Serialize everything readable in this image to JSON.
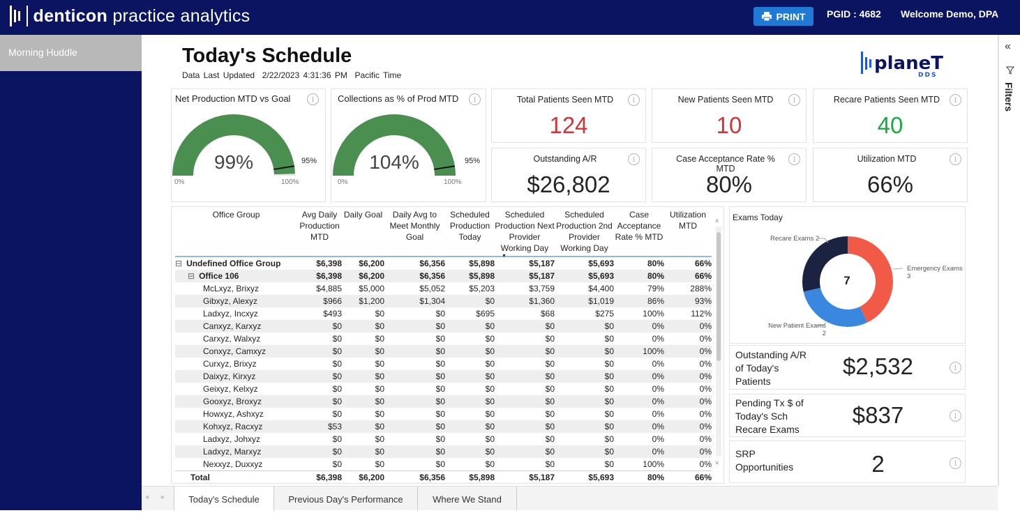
{
  "header": {
    "brand_bold": "denticon",
    "brand_light": "practice analytics",
    "print_label": "PRINT",
    "pgid": "PGID : 4682",
    "welcome": "Welcome Demo, DPA"
  },
  "sidebar": {
    "items": [
      {
        "label": "Morning Huddle"
      }
    ]
  },
  "page": {
    "title": "Today's Schedule",
    "updated_label": "Data Last Updated",
    "updated_value": "2/22/2023 4:31:36 PM",
    "timezone": "Pacific Time",
    "logo": "planet DDS"
  },
  "gauges": [
    {
      "title": "Net Production MTD vs Goal",
      "value": 99,
      "value_label": "99%",
      "target": 95,
      "target_label": "95%",
      "min_label": "0%",
      "max_label": "100%"
    },
    {
      "title": "Collections as % of Prod MTD",
      "value": 104,
      "value_label": "104%",
      "target": 95,
      "target_label": "95%",
      "min_label": "0%",
      "max_label": "100%"
    }
  ],
  "kpis": [
    {
      "title": "Total Patients Seen MTD",
      "value": "124",
      "color": "#d13438"
    },
    {
      "title": "New Patients Seen MTD",
      "value": "10",
      "color": "#d13438"
    },
    {
      "title": "Recare Patients Seen MTD",
      "value": "40",
      "color": "#1aab40"
    },
    {
      "title": "Outstanding A/R",
      "value": "$26,802",
      "color": "#252423"
    },
    {
      "title": "Case Acceptance Rate % MTD",
      "value": "80%",
      "color": "#252423"
    },
    {
      "title": "Utilization MTD",
      "value": "66%",
      "color": "#252423"
    }
  ],
  "table": {
    "headers": [
      "Office Group",
      "Avg Daily Production MTD",
      "Daily Goal",
      "Daily Avg to Meet Monthly Goal",
      "Scheduled Production Today",
      "Scheduled Production Next Provider Working Day",
      "Scheduled Production 2nd Provider Working Day",
      "Case Acceptance Rate % MTD",
      "Utilization MTD"
    ],
    "rows": [
      {
        "level": 0,
        "cells": [
          "Undefined Office Group",
          "$6,398",
          "$6,200",
          "$6,356",
          "$5,898",
          "$5,187",
          "$5,693",
          "80%",
          "66%"
        ]
      },
      {
        "level": 1,
        "cells": [
          "Office 106",
          "$6,398",
          "$6,200",
          "$6,356",
          "$5,898",
          "$5,187",
          "$5,693",
          "80%",
          "66%"
        ]
      },
      {
        "level": 2,
        "cells": [
          "McLxyz, Brixyz",
          "$4,885",
          "$5,000",
          "$5,052",
          "$5,203",
          "$3,759",
          "$4,400",
          "79%",
          "288%"
        ]
      },
      {
        "level": 2,
        "cells": [
          "Gibxyz, Alexyz",
          "$966",
          "$1,200",
          "$1,304",
          "$0",
          "$1,360",
          "$1,019",
          "86%",
          "93%"
        ]
      },
      {
        "level": 2,
        "cells": [
          "Ladxyz, Incxyz",
          "$493",
          "$0",
          "$0",
          "$695",
          "$68",
          "$275",
          "100%",
          "112%"
        ]
      },
      {
        "level": 2,
        "cells": [
          "Canxyz, Karxyz",
          "$0",
          "$0",
          "$0",
          "$0",
          "$0",
          "$0",
          "0%",
          "0%"
        ]
      },
      {
        "level": 2,
        "cells": [
          "Carxyz, Walxyz",
          "$0",
          "$0",
          "$0",
          "$0",
          "$0",
          "$0",
          "0%",
          "0%"
        ]
      },
      {
        "level": 2,
        "cells": [
          "Conxyz, Camxyz",
          "$0",
          "$0",
          "$0",
          "$0",
          "$0",
          "$0",
          "100%",
          "0%"
        ]
      },
      {
        "level": 2,
        "cells": [
          "Curxyz, Brixyz",
          "$0",
          "$0",
          "$0",
          "$0",
          "$0",
          "$0",
          "0%",
          "0%"
        ]
      },
      {
        "level": 2,
        "cells": [
          "Daixyz, Kirxyz",
          "$0",
          "$0",
          "$0",
          "$0",
          "$0",
          "$0",
          "0%",
          "0%"
        ]
      },
      {
        "level": 2,
        "cells": [
          "Geixyz, Kelxyz",
          "$0",
          "$0",
          "$0",
          "$0",
          "$0",
          "$0",
          "0%",
          "0%"
        ]
      },
      {
        "level": 2,
        "cells": [
          "Gooxyz, Broxyz",
          "$0",
          "$0",
          "$0",
          "$0",
          "$0",
          "$0",
          "0%",
          "0%"
        ]
      },
      {
        "level": 2,
        "cells": [
          "Howxyz, Ashxyz",
          "$0",
          "$0",
          "$0",
          "$0",
          "$0",
          "$0",
          "0%",
          "0%"
        ]
      },
      {
        "level": 2,
        "cells": [
          "Kohxyz, Racxyz",
          "$53",
          "$0",
          "$0",
          "$0",
          "$0",
          "$0",
          "0%",
          "0%"
        ]
      },
      {
        "level": 2,
        "cells": [
          "Ladxyz, Johxyz",
          "$0",
          "$0",
          "$0",
          "$0",
          "$0",
          "$0",
          "0%",
          "0%"
        ]
      },
      {
        "level": 2,
        "cells": [
          "Ladxyz, Marxyz",
          "$0",
          "$0",
          "$0",
          "$0",
          "$0",
          "$0",
          "0%",
          "0%"
        ]
      },
      {
        "level": 2,
        "cells": [
          "Nexxyz, Duxxyz",
          "$0",
          "$0",
          "$0",
          "$0",
          "$0",
          "$0",
          "100%",
          "0%"
        ]
      }
    ],
    "total": [
      "Total",
      "$6,398",
      "$6,200",
      "$6,356",
      "$5,898",
      "$5,187",
      "$5,693",
      "80%",
      "66%"
    ]
  },
  "exams": {
    "title": "Exams Today",
    "total": "7",
    "slices": [
      {
        "label": "Emergency Exams",
        "value": 3,
        "color": "#f05a46"
      },
      {
        "label": "New Patient Exams",
        "value": 2,
        "color": "#3a87e0"
      },
      {
        "label": "Recare Exams",
        "value": 2,
        "color": "#1b2340"
      }
    ]
  },
  "side_kpis": [
    {
      "title": "Outstanding A/R of Today's Patients",
      "value": "$2,532"
    },
    {
      "title": "Pending Tx $ of Today's Sch Recare Exams",
      "value": "$837"
    },
    {
      "title": "SRP Opportunities",
      "value": "2"
    }
  ],
  "tabs": [
    {
      "label": "Today's Schedule"
    },
    {
      "label": "Previous Day's Performance"
    },
    {
      "label": "Where We Stand"
    }
  ],
  "filters": {
    "label": "Filters"
  }
}
